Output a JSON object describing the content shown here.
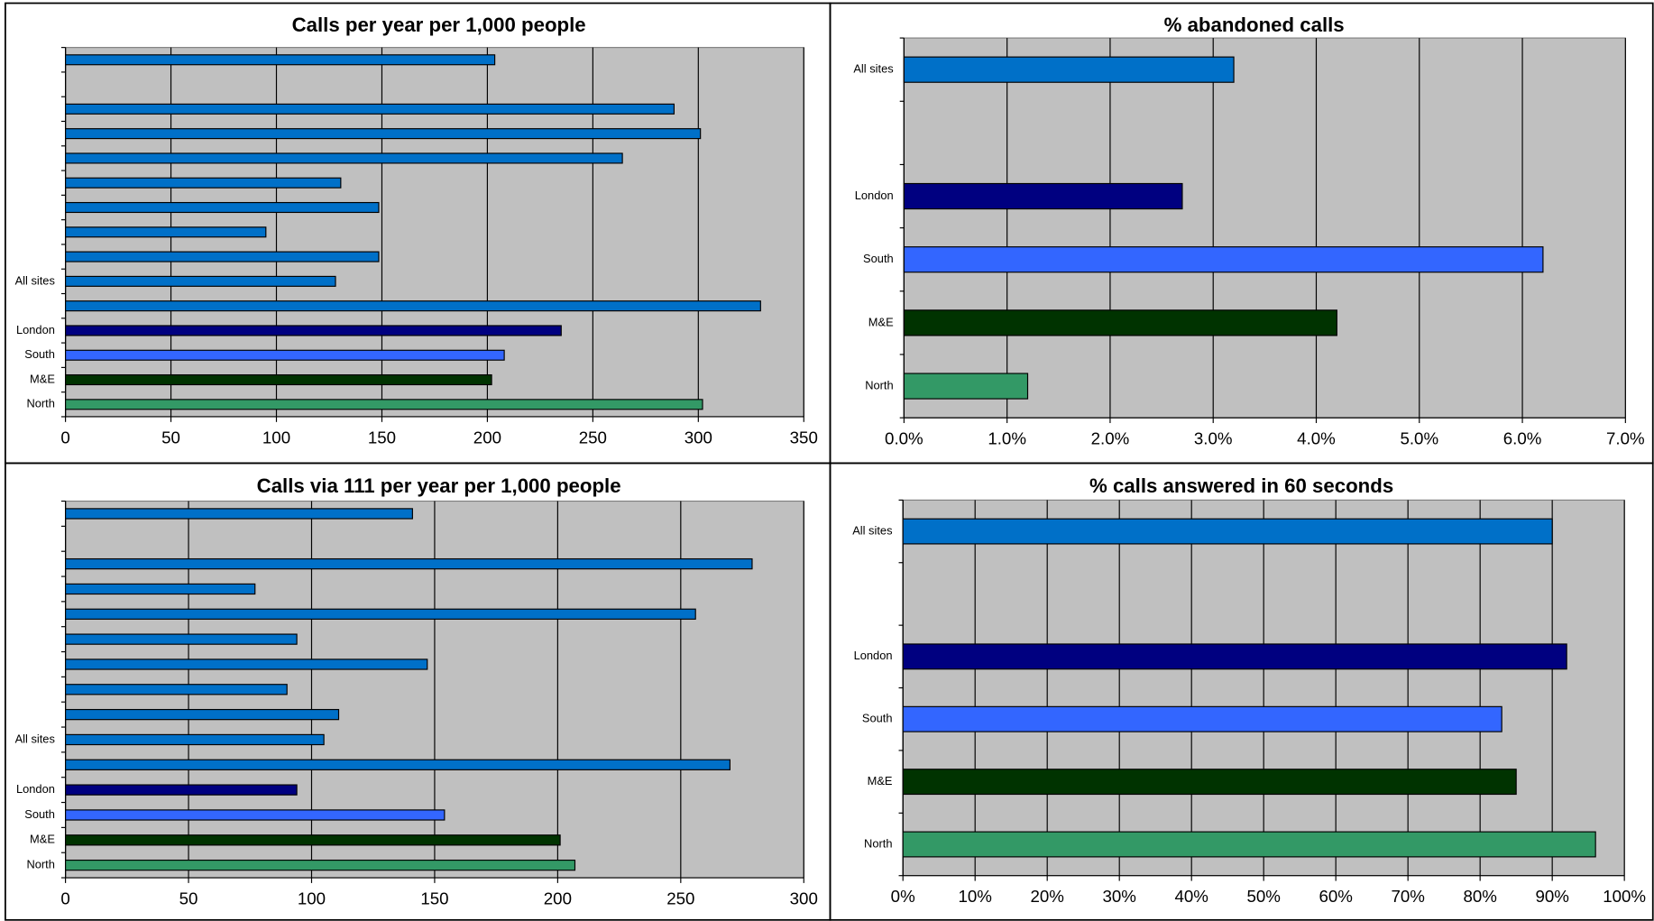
{
  "chart_data": [
    {
      "type": "bar",
      "orientation": "horizontal",
      "title": "Calls per year per 1,000 people",
      "categories": [
        null,
        null,
        null,
        null,
        null,
        null,
        null,
        null,
        null,
        "All sites",
        null,
        "London",
        "South",
        "M&E",
        "North"
      ],
      "values": [
        203.5,
        null,
        288.5,
        301,
        264,
        130.5,
        148.5,
        95,
        148.5,
        128,
        329.5,
        235,
        208,
        202,
        302
      ],
      "colors": [
        "#0070c8",
        "#0070c8",
        "#0070c8",
        "#0070c8",
        "#0070c8",
        "#0070c8",
        "#0070c8",
        "#0070c8",
        "#0070c8",
        "#0070c8",
        "#0070c8",
        "#000080",
        "#3366ff",
        "#003300",
        "#339966"
      ],
      "xlim": [
        0,
        350
      ],
      "xticks": [
        0,
        50,
        100,
        150,
        200,
        250,
        300,
        350
      ],
      "grid": true
    },
    {
      "type": "bar",
      "orientation": "horizontal",
      "title": "% abandoned calls",
      "categories": [
        "All sites",
        null,
        "London",
        "South",
        "M&E",
        "North"
      ],
      "values": [
        3.2,
        null,
        2.7,
        6.2,
        4.2,
        1.2
      ],
      "colors": [
        "#0070c8",
        "#0070c8",
        "#000080",
        "#3366ff",
        "#003300",
        "#339966"
      ],
      "xlim": [
        0,
        7
      ],
      "xticks": [
        {
          "value": 0,
          "label": "0.0%"
        },
        {
          "value": 1,
          "label": "1.0%"
        },
        {
          "value": 2,
          "label": "2.0%"
        },
        {
          "value": 3,
          "label": "3.0%"
        },
        {
          "value": 4,
          "label": "4.0%"
        },
        {
          "value": 5,
          "label": "5.0%"
        },
        {
          "value": 6,
          "label": "6.0%"
        },
        {
          "value": 7,
          "label": "7.0%"
        }
      ],
      "grid": true
    },
    {
      "type": "bar",
      "orientation": "horizontal",
      "title": "Calls via 111 per year per 1,000 people",
      "categories": [
        null,
        null,
        null,
        null,
        null,
        null,
        null,
        null,
        null,
        "All sites",
        null,
        "London",
        "South",
        "M&E",
        "North"
      ],
      "values": [
        141,
        null,
        279,
        77,
        256,
        94,
        147,
        90,
        111,
        105,
        270,
        94,
        154,
        201,
        207
      ],
      "colors": [
        "#0070c8",
        "#0070c8",
        "#0070c8",
        "#0070c8",
        "#0070c8",
        "#0070c8",
        "#0070c8",
        "#0070c8",
        "#0070c8",
        "#0070c8",
        "#0070c8",
        "#000080",
        "#3366ff",
        "#003300",
        "#339966"
      ],
      "xlim": [
        0,
        300
      ],
      "xticks": [
        0,
        50,
        100,
        150,
        200,
        250,
        300
      ],
      "grid": true
    },
    {
      "type": "bar",
      "orientation": "horizontal",
      "title": "% calls answered in 60 seconds",
      "categories": [
        "All sites",
        null,
        "London",
        "South",
        "M&E",
        "North"
      ],
      "values": [
        90,
        null,
        92,
        83,
        85,
        96
      ],
      "colors": [
        "#0070c8",
        "#0070c8",
        "#000080",
        "#3366ff",
        "#003300",
        "#339966"
      ],
      "xlim": [
        0,
        100
      ],
      "xticks": [
        {
          "value": 0,
          "label": "0%"
        },
        {
          "value": 10,
          "label": "10%"
        },
        {
          "value": 20,
          "label": "20%"
        },
        {
          "value": 30,
          "label": "30%"
        },
        {
          "value": 40,
          "label": "40%"
        },
        {
          "value": 50,
          "label": "50%"
        },
        {
          "value": 60,
          "label": "60%"
        },
        {
          "value": 70,
          "label": "70%"
        },
        {
          "value": 80,
          "label": "80%"
        },
        {
          "value": 90,
          "label": "90%"
        },
        {
          "value": 100,
          "label": "100%"
        }
      ],
      "grid": true
    }
  ]
}
